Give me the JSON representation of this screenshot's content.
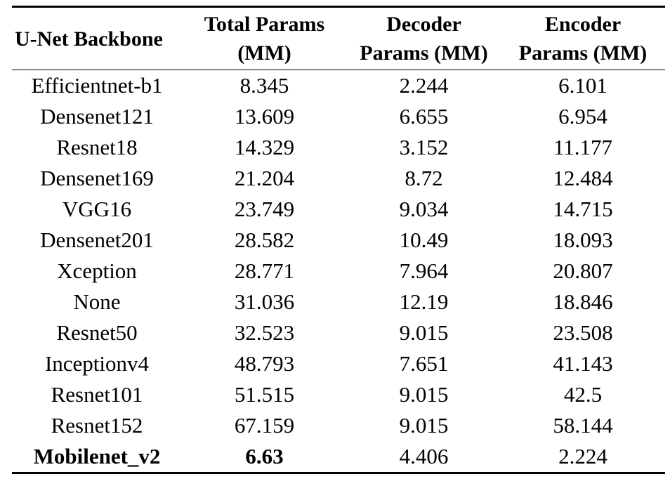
{
  "table": {
    "headers": [
      {
        "lines": [
          "U-Net Backbone"
        ]
      },
      {
        "lines": [
          "Total Params",
          "(MM)"
        ]
      },
      {
        "lines": [
          "Decoder",
          "Params (MM)"
        ]
      },
      {
        "lines": [
          "Encoder",
          "Params (MM)"
        ]
      }
    ],
    "rows": [
      {
        "backbone": "Efficientnet-b1",
        "total": "8.345",
        "decoder": "2.244",
        "encoder": "6.101"
      },
      {
        "backbone": "Densenet121",
        "total": "13.609",
        "decoder": "6.655",
        "encoder": "6.954"
      },
      {
        "backbone": "Resnet18",
        "total": "14.329",
        "decoder": "3.152",
        "encoder": "11.177"
      },
      {
        "backbone": "Densenet169",
        "total": "21.204",
        "decoder": "8.72",
        "encoder": "12.484"
      },
      {
        "backbone": "VGG16",
        "total": "23.749",
        "decoder": "9.034",
        "encoder": "14.715"
      },
      {
        "backbone": "Densenet201",
        "total": "28.582",
        "decoder": "10.49",
        "encoder": "18.093"
      },
      {
        "backbone": "Xception",
        "total": "28.771",
        "decoder": "7.964",
        "encoder": "20.807"
      },
      {
        "backbone": "None",
        "total": "31.036",
        "decoder": "12.19",
        "encoder": "18.846"
      },
      {
        "backbone": "Resnet50",
        "total": "32.523",
        "decoder": "9.015",
        "encoder": "23.508"
      },
      {
        "backbone": "Inceptionv4",
        "total": "48.793",
        "decoder": "7.651",
        "encoder": "41.143"
      },
      {
        "backbone": "Resnet101",
        "total": "51.515",
        "decoder": "9.015",
        "encoder": "42.5"
      },
      {
        "backbone": "Resnet152",
        "total": "67.159",
        "decoder": "9.015",
        "encoder": "58.144"
      },
      {
        "backbone": "Mobilenet_v2",
        "total": "6.63",
        "decoder": "4.406",
        "encoder": "2.224",
        "bold_cells": [
          "backbone",
          "total"
        ]
      }
    ]
  }
}
